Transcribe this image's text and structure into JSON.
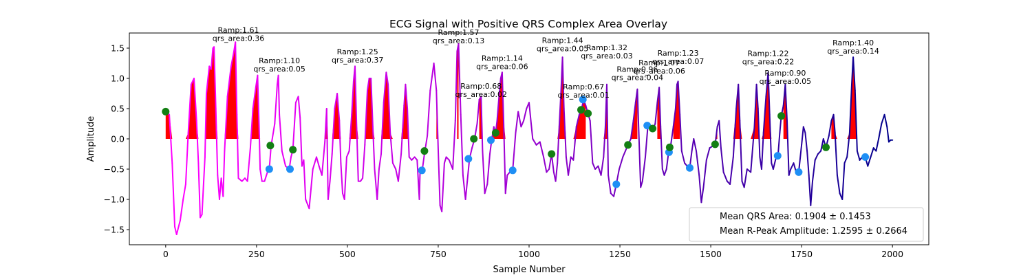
{
  "chart_data": {
    "type": "line",
    "title": "ECG Signal with Positive QRS Complex Area Overlay",
    "xlabel": "Sample Number",
    "ylabel": "Amplitude",
    "xlim": [
      -100,
      2100
    ],
    "ylim": [
      -1.75,
      1.75
    ],
    "xticks": [
      0,
      250,
      500,
      750,
      1000,
      1250,
      1500,
      1750,
      2000
    ],
    "yticks": [
      -1.5,
      -1.0,
      -0.5,
      0.0,
      0.5,
      1.0,
      1.5
    ],
    "xtick_labels": [
      "0",
      "250",
      "500",
      "750",
      "1000",
      "1250",
      "1500",
      "1750",
      "2000"
    ],
    "ytick_labels": [
      "−1.5",
      "−1.0",
      "−0.5",
      "0.0",
      "0.5",
      "1.0",
      "1.5"
    ],
    "grid": false,
    "colors": {
      "signal_start": "#ff00ff",
      "signal_end": "#00008b",
      "qrs_fill": "#ff0000",
      "onset_marker": "#1e8ff5",
      "offset_marker": "#137f13"
    },
    "signal": [
      [
        0,
        0.45
      ],
      [
        5,
        0.44
      ],
      [
        10,
        0.4
      ],
      [
        18,
        -0.4
      ],
      [
        25,
        -1.45
      ],
      [
        30,
        -1.58
      ],
      [
        40,
        -1.35
      ],
      [
        48,
        -1.0
      ],
      [
        55,
        -0.75
      ],
      [
        62,
        0.1
      ],
      [
        70,
        0.9
      ],
      [
        78,
        1.0
      ],
      [
        85,
        0.3
      ],
      [
        90,
        -0.4
      ],
      [
        95,
        -1.3
      ],
      [
        100,
        -1.25
      ],
      [
        108,
        -0.3
      ],
      [
        112,
        0.75
      ],
      [
        120,
        1.2
      ],
      [
        125,
        1.15
      ],
      [
        130,
        1.5
      ],
      [
        133,
        1.52
      ],
      [
        138,
        0.5
      ],
      [
        143,
        -0.6
      ],
      [
        148,
        -1.0
      ],
      [
        153,
        -0.65
      ],
      [
        158,
        -0.95
      ],
      [
        162,
        -0.2
      ],
      [
        170,
        0.7
      ],
      [
        180,
        1.2
      ],
      [
        188,
        1.45
      ],
      [
        192,
        1.6
      ],
      [
        196,
        0.4
      ],
      [
        200,
        -0.65
      ],
      [
        210,
        -0.7
      ],
      [
        218,
        -0.65
      ],
      [
        225,
        -0.7
      ],
      [
        233,
        -0.15
      ],
      [
        240,
        0.5
      ],
      [
        248,
        0.85
      ],
      [
        253,
        1.05
      ],
      [
        257,
        0.2
      ],
      [
        260,
        -0.5
      ],
      [
        265,
        -0.7
      ],
      [
        272,
        -0.7
      ],
      [
        280,
        -0.55
      ],
      [
        285,
        -0.5
      ],
      [
        290,
        -0.12
      ],
      [
        300,
        0.25
      ],
      [
        307,
        0.9
      ],
      [
        310,
        1.05
      ],
      [
        313,
        0.4
      ],
      [
        320,
        -0.2
      ],
      [
        330,
        -0.45
      ],
      [
        340,
        -0.5
      ],
      [
        345,
        -0.3
      ],
      [
        350,
        -0.18
      ],
      [
        358,
        0.6
      ],
      [
        365,
        0.7
      ],
      [
        370,
        0.35
      ],
      [
        375,
        -0.45
      ],
      [
        380,
        -0.35
      ],
      [
        385,
        -1.0
      ],
      [
        395,
        -1.15
      ],
      [
        405,
        -0.5
      ],
      [
        415,
        -0.3
      ],
      [
        422,
        -0.45
      ],
      [
        430,
        -0.6
      ],
      [
        438,
        -0.05
      ],
      [
        443,
        0.5
      ],
      [
        447,
        -1.0
      ],
      [
        452,
        -0.7
      ],
      [
        458,
        -0.25
      ],
      [
        465,
        0.5
      ],
      [
        472,
        0.75
      ],
      [
        478,
        0.3
      ],
      [
        482,
        -0.4
      ],
      [
        487,
        -0.9
      ],
      [
        492,
        -1.0
      ],
      [
        498,
        -0.3
      ],
      [
        505,
        -0.2
      ],
      [
        512,
        0.4
      ],
      [
        517,
        0.95
      ],
      [
        521,
        1.2
      ],
      [
        525,
        0.3
      ],
      [
        530,
        -0.7
      ],
      [
        536,
        -0.7
      ],
      [
        542,
        -0.65
      ],
      [
        548,
        -0.1
      ],
      [
        555,
        0.8
      ],
      [
        560,
        1.0
      ],
      [
        565,
        1.0
      ],
      [
        570,
        0.2
      ],
      [
        575,
        -0.5
      ],
      [
        582,
        -1.0
      ],
      [
        587,
        -0.5
      ],
      [
        593,
        -0.25
      ],
      [
        600,
        0.6
      ],
      [
        607,
        1.1
      ],
      [
        612,
        0.9
      ],
      [
        618,
        0.1
      ],
      [
        625,
        -0.4
      ],
      [
        633,
        -0.5
      ],
      [
        640,
        -0.7
      ],
      [
        648,
        -0.25
      ],
      [
        656,
        0.55
      ],
      [
        660,
        0.9
      ],
      [
        665,
        0.5
      ],
      [
        670,
        -0.3
      ],
      [
        677,
        -0.35
      ],
      [
        685,
        -0.3
      ],
      [
        692,
        -0.35
      ],
      [
        698,
        -1.0
      ],
      [
        700,
        -0.55
      ],
      [
        706,
        -0.52
      ],
      [
        712,
        -0.25
      ],
      [
        720,
        0.05
      ],
      [
        728,
        0.8
      ],
      [
        738,
        1.25
      ],
      [
        745,
        0.8
      ],
      [
        750,
        -0.2
      ],
      [
        755,
        -1.1
      ],
      [
        760,
        -1.2
      ],
      [
        767,
        -0.4
      ],
      [
        772,
        -0.3
      ],
      [
        780,
        -0.35
      ],
      [
        790,
        -0.5
      ],
      [
        797,
        0.3
      ],
      [
        802,
        1.45
      ],
      [
        806,
        1.57
      ],
      [
        812,
        0.4
      ],
      [
        818,
        -0.6
      ],
      [
        825,
        -1.0
      ],
      [
        830,
        -0.7
      ],
      [
        836,
        -0.33
      ],
      [
        843,
        -0.15
      ],
      [
        850,
        0.0
      ],
      [
        857,
        0.25
      ],
      [
        863,
        0.65
      ],
      [
        868,
        0.7
      ],
      [
        872,
        -0.2
      ],
      [
        878,
        -0.9
      ],
      [
        885,
        -0.75
      ],
      [
        892,
        -0.25
      ],
      [
        897,
        -0.02
      ],
      [
        903,
        0.2
      ],
      [
        908,
        0.1
      ],
      [
        912,
        0.3
      ],
      [
        918,
        0.75
      ],
      [
        922,
        1.0
      ],
      [
        926,
        1.1
      ],
      [
        930,
        0.3
      ],
      [
        935,
        -0.9
      ],
      [
        940,
        -0.6
      ],
      [
        947,
        -0.55
      ],
      [
        955,
        -0.52
      ],
      [
        963,
        0.1
      ],
      [
        970,
        0.45
      ],
      [
        978,
        0.2
      ],
      [
        985,
        0.3
      ],
      [
        993,
        0.5
      ],
      [
        1000,
        0.6
      ],
      [
        1005,
        0.3
      ],
      [
        1010,
        0.0
      ],
      [
        1020,
        -0.1
      ],
      [
        1030,
        -0.05
      ],
      [
        1040,
        -0.3
      ],
      [
        1048,
        -0.55
      ],
      [
        1055,
        -0.5
      ],
      [
        1062,
        -0.25
      ],
      [
        1068,
        -0.55
      ],
      [
        1073,
        -0.7
      ],
      [
        1078,
        -0.4
      ],
      [
        1083,
        0.2
      ],
      [
        1088,
        0.8
      ],
      [
        1092,
        1.35
      ],
      [
        1096,
        0.5
      ],
      [
        1102,
        -0.3
      ],
      [
        1108,
        -0.6
      ],
      [
        1115,
        -0.3
      ],
      [
        1122,
        -0.35
      ],
      [
        1130,
        0.2
      ],
      [
        1138,
        0.4
      ],
      [
        1144,
        0.48
      ],
      [
        1150,
        0.65
      ],
      [
        1156,
        0.55
      ],
      [
        1162,
        0.42
      ],
      [
        1168,
        0.3
      ],
      [
        1175,
        -0.4
      ],
      [
        1182,
        -0.5
      ],
      [
        1190,
        -0.45
      ],
      [
        1198,
        -0.6
      ],
      [
        1205,
        -0.3
      ],
      [
        1210,
        0.2
      ],
      [
        1214,
        0.9
      ],
      [
        1218,
        -0.6
      ],
      [
        1225,
        -0.9
      ],
      [
        1233,
        -0.95
      ],
      [
        1240,
        -0.75
      ],
      [
        1248,
        -0.5
      ],
      [
        1258,
        -0.3
      ],
      [
        1265,
        -0.2
      ],
      [
        1272,
        -0.1
      ],
      [
        1280,
        0.0
      ],
      [
        1287,
        0.3
      ],
      [
        1293,
        0.6
      ],
      [
        1298,
        0.82
      ],
      [
        1302,
        0.1
      ],
      [
        1307,
        -0.8
      ],
      [
        1312,
        -0.7
      ],
      [
        1320,
        -0.3
      ],
      [
        1327,
        0.22
      ],
      [
        1335,
        0.2
      ],
      [
        1341,
        0.15
      ],
      [
        1347,
        0.25
      ],
      [
        1353,
        0.6
      ],
      [
        1358,
        0.85
      ],
      [
        1362,
        0.2
      ],
      [
        1367,
        -0.5
      ],
      [
        1372,
        -0.6
      ],
      [
        1378,
        -0.5
      ],
      [
        1384,
        -0.22
      ],
      [
        1390,
        -0.1
      ],
      [
        1397,
        0.2
      ],
      [
        1403,
        0.5
      ],
      [
        1407,
        0.9
      ],
      [
        1410,
        0.95
      ],
      [
        1415,
        0.4
      ],
      [
        1420,
        -0.2
      ],
      [
        1428,
        -0.4
      ],
      [
        1435,
        -0.45
      ],
      [
        1442,
        -0.48
      ],
      [
        1448,
        -0.2
      ],
      [
        1453,
        0.0
      ],
      [
        1460,
        -0.2
      ],
      [
        1468,
        -0.6
      ],
      [
        1474,
        -1.05
      ],
      [
        1480,
        -0.8
      ],
      [
        1488,
        -0.35
      ],
      [
        1497,
        -0.15
      ],
      [
        1505,
        -0.12
      ],
      [
        1512,
        -0.1
      ],
      [
        1518,
        0.2
      ],
      [
        1523,
        0.3
      ],
      [
        1528,
        -0.15
      ],
      [
        1535,
        -0.55
      ],
      [
        1545,
        -0.7
      ],
      [
        1553,
        -0.75
      ],
      [
        1562,
        -0.3
      ],
      [
        1570,
        0.5
      ],
      [
        1576,
        0.9
      ],
      [
        1580,
        0.3
      ],
      [
        1586,
        -0.7
      ],
      [
        1592,
        -0.8
      ],
      [
        1600,
        -0.5
      ],
      [
        1610,
        -0.55
      ],
      [
        1620,
        0.2
      ],
      [
        1626,
        0.9
      ],
      [
        1630,
        0.5
      ],
      [
        1635,
        -0.3
      ],
      [
        1640,
        -0.5
      ],
      [
        1645,
        0.1
      ],
      [
        1652,
        0.7
      ],
      [
        1658,
        1.1
      ],
      [
        1662,
        0.4
      ],
      [
        1667,
        -0.4
      ],
      [
        1672,
        -0.5
      ],
      [
        1680,
        -0.3
      ],
      [
        1685,
        -0.28
      ],
      [
        1690,
        0.1
      ],
      [
        1694,
        0.38
      ],
      [
        1700,
        0.55
      ],
      [
        1705,
        0.9
      ],
      [
        1710,
        0.3
      ],
      [
        1715,
        -0.6
      ],
      [
        1720,
        -0.5
      ],
      [
        1728,
        -0.4
      ],
      [
        1735,
        -0.55
      ],
      [
        1742,
        -0.55
      ],
      [
        1750,
        -0.1
      ],
      [
        1755,
        0.2
      ],
      [
        1760,
        0.1
      ],
      [
        1765,
        -0.2
      ],
      [
        1770,
        -0.6
      ],
      [
        1775,
        -1.1
      ],
      [
        1780,
        -0.7
      ],
      [
        1787,
        -0.35
      ],
      [
        1795,
        -0.25
      ],
      [
        1803,
        -0.2
      ],
      [
        1810,
        0.0
      ],
      [
        1817,
        -0.14
      ],
      [
        1825,
        0.05
      ],
      [
        1832,
        0.3
      ],
      [
        1838,
        0.4
      ],
      [
        1842,
        0.1
      ],
      [
        1848,
        -0.6
      ],
      [
        1855,
        -0.9
      ],
      [
        1862,
        -1.0
      ],
      [
        1868,
        -0.4
      ],
      [
        1875,
        -0.3
      ],
      [
        1882,
        0.1
      ],
      [
        1888,
        0.9
      ],
      [
        1892,
        1.35
      ],
      [
        1897,
        0.8
      ],
      [
        1903,
        -0.2
      ],
      [
        1910,
        -0.35
      ],
      [
        1917,
        -0.3
      ],
      [
        1925,
        -0.3
      ],
      [
        1932,
        -0.45
      ],
      [
        1940,
        -0.3
      ],
      [
        1948,
        -0.15
      ],
      [
        1955,
        -0.2
      ],
      [
        1962,
        0.0
      ],
      [
        1970,
        0.25
      ],
      [
        1978,
        0.4
      ],
      [
        1985,
        0.2
      ],
      [
        1990,
        -0.05
      ],
      [
        1995,
        -0.02
      ],
      [
        2000,
        -0.02
      ]
    ],
    "qrs_fill_ranges": [
      [
        0,
        285
      ],
      [
        400,
        695
      ],
      [
        740,
        780
      ],
      [
        800,
        810
      ],
      [
        860,
        935
      ],
      [
        1060,
        1160
      ],
      [
        1170,
        1220
      ],
      [
        1280,
        1300
      ],
      [
        1350,
        1365
      ],
      [
        1395,
        1415
      ],
      [
        1505,
        1520
      ],
      [
        1560,
        1670
      ],
      [
        1695,
        1710
      ],
      [
        1830,
        1905
      ]
    ],
    "onset_points": [
      [
        285,
        -0.5
      ],
      [
        342,
        -0.5
      ],
      [
        705,
        -0.52
      ],
      [
        833,
        -0.33
      ],
      [
        895,
        -0.02
      ],
      [
        955,
        -0.52
      ],
      [
        1148,
        0.65
      ],
      [
        1240,
        -0.75
      ],
      [
        1325,
        0.22
      ],
      [
        1385,
        -0.22
      ],
      [
        1442,
        -0.48
      ],
      [
        1684,
        -0.28
      ],
      [
        1742,
        -0.55
      ],
      [
        1925,
        -0.3
      ]
    ],
    "offset_points": [
      [
        0,
        0.45
      ],
      [
        288,
        -0.11
      ],
      [
        350,
        -0.18
      ],
      [
        712,
        -0.2
      ],
      [
        848,
        0.0
      ],
      [
        908,
        0.1
      ],
      [
        1062,
        -0.25
      ],
      [
        1143,
        0.48
      ],
      [
        1162,
        0.42
      ],
      [
        1272,
        -0.1
      ],
      [
        1340,
        0.17
      ],
      [
        1387,
        -0.14
      ],
      [
        1512,
        -0.09
      ],
      [
        1694,
        0.38
      ],
      [
        1817,
        -0.14
      ]
    ],
    "annotations": [
      {
        "line1": "Ramp:1.61",
        "line2": "qrs_area:0.36",
        "x": 200,
        "y": 1.61
      },
      {
        "line1": "Ramp:1.10",
        "line2": "qrs_area:0.05",
        "x": 313,
        "y": 1.1
      },
      {
        "line1": "Ramp:1.25",
        "line2": "qrs_area:0.37",
        "x": 528,
        "y": 1.25
      },
      {
        "line1": "Ramp:1.57",
        "line2": "qrs_area:0.13",
        "x": 806,
        "y": 1.57
      },
      {
        "line1": "Ramp:1.14",
        "line2": "qrs_area:0.06",
        "x": 926,
        "y": 1.14
      },
      {
        "line1": "Ramp:0.68",
        "line2": "qrs_area:0.02",
        "x": 868,
        "y": 0.68
      },
      {
        "line1": "Ramp:1.44",
        "line2": "qrs_area:0.05",
        "x": 1092,
        "y": 1.44
      },
      {
        "line1": "Ramp:1.32",
        "line2": "qrs_area:0.03",
        "x": 1214,
        "y": 1.32
      },
      {
        "line1": "Ramp:0.67",
        "line2": "qrs_area:0.01",
        "x": 1150,
        "y": 0.67
      },
      {
        "line1": "Ramp:0.96",
        "line2": "qrs_area:0.04",
        "x": 1298,
        "y": 0.96
      },
      {
        "line1": "Ramp:1.07",
        "line2": "qrs_area:0.06",
        "x": 1358,
        "y": 1.07
      },
      {
        "line1": "Ramp:1.23",
        "line2": "qrs_area:0.07",
        "x": 1410,
        "y": 1.23
      },
      {
        "line1": "Ramp:1.22",
        "line2": "qrs_area:0.22",
        "x": 1658,
        "y": 1.22
      },
      {
        "line1": "Ramp:0.90",
        "line2": "qrs_area:0.05",
        "x": 1705,
        "y": 0.9
      },
      {
        "line1": "Ramp:1.40",
        "line2": "qrs_area:0.14",
        "x": 1892,
        "y": 1.4
      }
    ],
    "legend": {
      "placement": "lower-right",
      "entries": [
        "Mean QRS Area: 0.1904 ± 0.1453",
        "Mean R-Peak Amplitude: 1.2595 ± 0.2664"
      ]
    }
  }
}
